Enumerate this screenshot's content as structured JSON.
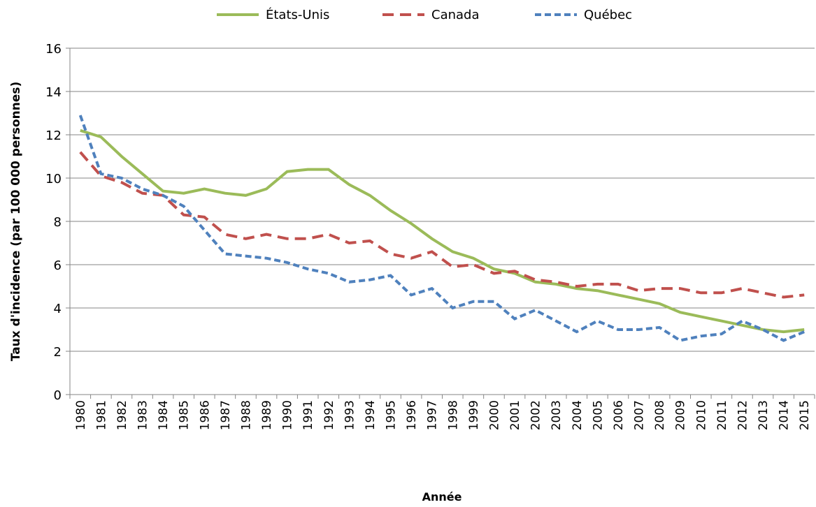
{
  "chart_data": {
    "type": "line",
    "xlabel": "Année",
    "ylabel": "Taux d'incidence  (par 100 000 personnes)",
    "categories": [
      "1980",
      "1981",
      "1982",
      "1983",
      "1984",
      "1985",
      "1986",
      "1987",
      "1988",
      "1989",
      "1990",
      "1991",
      "1992",
      "1993",
      "1994",
      "1995",
      "1996",
      "1997",
      "1998",
      "1999",
      "2000",
      "2001",
      "2002",
      "2003",
      "2004",
      "2005",
      "2006",
      "2007",
      "2008",
      "2009",
      "2010",
      "2011",
      "2012",
      "2013",
      "2014",
      "2015"
    ],
    "series": [
      {
        "name": "États-Unis",
        "color": "#9bbb59",
        "line_style": "solid",
        "values": [
          12.2,
          11.9,
          11.0,
          10.2,
          9.4,
          9.3,
          9.5,
          9.3,
          9.2,
          9.5,
          10.3,
          10.4,
          10.4,
          9.7,
          9.2,
          8.5,
          7.9,
          7.2,
          6.6,
          6.3,
          5.8,
          5.6,
          5.2,
          5.1,
          4.9,
          4.8,
          4.6,
          4.4,
          4.2,
          3.8,
          3.6,
          3.4,
          3.2,
          3.0,
          2.9,
          3.0
        ]
      },
      {
        "name": "Canada",
        "color": "#c0504d",
        "line_style": "dashed",
        "values": [
          11.2,
          10.1,
          9.8,
          9.3,
          9.2,
          8.3,
          8.2,
          7.4,
          7.2,
          7.4,
          7.2,
          7.2,
          7.4,
          7.0,
          7.1,
          6.5,
          6.3,
          6.6,
          5.9,
          6.0,
          5.6,
          5.7,
          5.3,
          5.2,
          5.0,
          5.1,
          5.1,
          4.8,
          4.9,
          4.9,
          4.7,
          4.7,
          4.9,
          4.7,
          4.5,
          4.6
        ]
      },
      {
        "name": "Québec",
        "color": "#4f81bd",
        "line_style": "dotted",
        "values": [
          12.9,
          10.2,
          10.0,
          9.5,
          9.2,
          8.7,
          7.6,
          6.5,
          6.4,
          6.3,
          6.1,
          5.8,
          5.6,
          5.2,
          5.3,
          5.5,
          4.6,
          4.9,
          4.0,
          4.3,
          4.3,
          3.5,
          3.9,
          3.4,
          2.9,
          3.4,
          3.0,
          3.0,
          3.1,
          2.5,
          2.7,
          2.8,
          3.4,
          3.0,
          2.5,
          2.9
        ]
      }
    ],
    "ylim": [
      0,
      16
    ],
    "yticks": [
      0,
      2,
      4,
      6,
      8,
      10,
      12,
      14,
      16
    ],
    "grid": true,
    "legend": "top"
  }
}
